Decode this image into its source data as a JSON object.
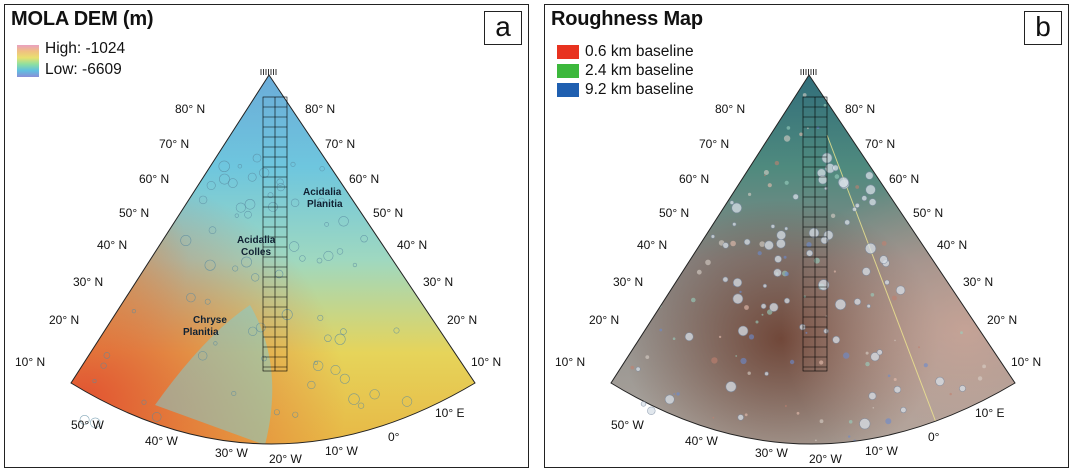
{
  "panel_a": {
    "title": "MOLA DEM (m)",
    "letter": "a",
    "legend_high": "High: -1024",
    "legend_low": "Low: -6609",
    "features": [
      {
        "line1": "Acidalia",
        "line2": "Planitia"
      },
      {
        "line1": "Acidalia",
        "line2": "Colles"
      },
      {
        "line1": "Chryse",
        "line2": "Planitia"
      }
    ]
  },
  "panel_b": {
    "title": "Roughness Map",
    "letter": "b",
    "legend": [
      {
        "label": "0.6 km baseline",
        "color": "#e8321f"
      },
      {
        "label": "2.4 km baseline",
        "color": "#3cb83c"
      },
      {
        "label": "9.2 km baseline",
        "color": "#1f5fb0"
      }
    ]
  },
  "lat_labels": [
    "80° N",
    "70° N",
    "60° N",
    "50° N",
    "40° N",
    "30° N",
    "20° N",
    "10° N"
  ],
  "lon_labels": [
    "50° W",
    "40° W",
    "30° W",
    "20° W",
    "10° W",
    "0°",
    "10° E"
  ],
  "colors": {
    "dem_high": "#e8503a",
    "dem_low": "#5f9ad6",
    "grid": "#000000"
  }
}
